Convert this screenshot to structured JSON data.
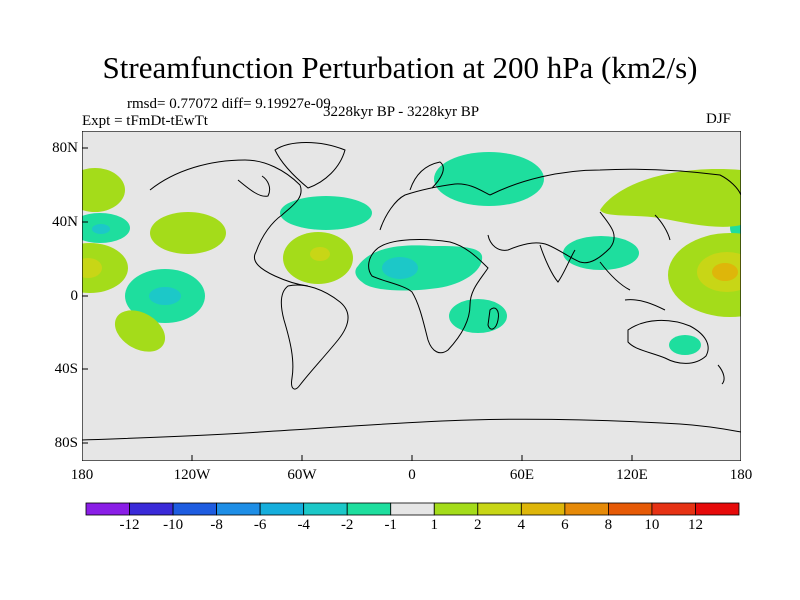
{
  "title": "Streamfunction Perturbation at 200 hPa (km2/s)",
  "stats": "rmsd= 0.77072 diff= 9.19927e-09",
  "experiment": "Expt = tFmDt-tEwTt",
  "period": "3228kyr BP - 3228kyr BP",
  "season": "DJF",
  "lat_ticks": [
    "80N",
    "40N",
    "0",
    "40S",
    "80S"
  ],
  "lon_ticks": [
    "180",
    "120W",
    "60W",
    "0",
    "60E",
    "120E",
    "180"
  ],
  "colorbar": {
    "labels": [
      "-12",
      "-10",
      "-8",
      "-6",
      "-4",
      "-2",
      "-1",
      "1",
      "2",
      "4",
      "6",
      "8",
      "10",
      "12"
    ],
    "colors": [
      "#8a1ee6",
      "#3a2ad8",
      "#1e5ce0",
      "#1e8ee6",
      "#16aedc",
      "#1cc8c8",
      "#1ede9e",
      "#e6e6e6",
      "#a4dc1a",
      "#c8d616",
      "#deb60a",
      "#e68a08",
      "#e65a06",
      "#e63214",
      "#e60a0a"
    ]
  },
  "colors": {
    "background": "#e6e6e6",
    "coast": "#000000"
  }
}
